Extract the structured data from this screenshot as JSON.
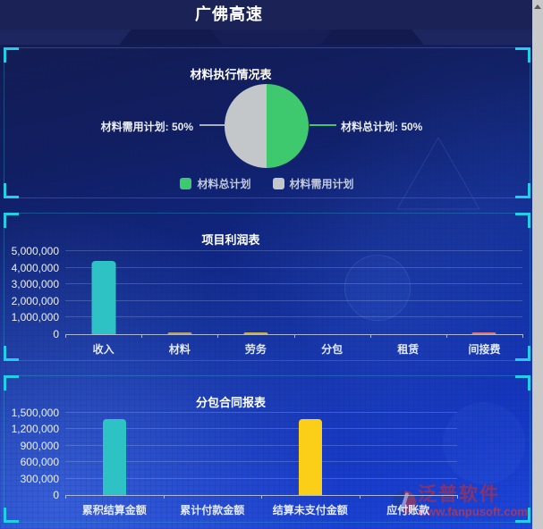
{
  "header": {
    "title": "广佛高速"
  },
  "icons": {
    "scroll_up": "triangle-up",
    "fanpu_logo": "red-blue-split-circle"
  },
  "colors": {
    "accent_cyan": "#1fd0e8",
    "teal_bar": "#2fc2c4",
    "yellow_bar": "#fbcf17",
    "green_slice": "#3fc96f",
    "grey_slice": "#c4c7ca"
  },
  "watermark": {
    "brand": "泛普软件",
    "url": "www.fanpusoft.com"
  },
  "chart_data": [
    {
      "type": "pie",
      "title": "材料执行情况表",
      "slices": [
        {
          "label": "材料总计划",
          "value": 50,
          "callout": "材料总计划: 50%",
          "color": "#3fc96f"
        },
        {
          "label": "材料需用计划",
          "value": 50,
          "callout": "材料需用计划: 50%",
          "color": "#c4c7ca"
        }
      ],
      "legend_position": "bottom"
    },
    {
      "type": "bar",
      "title": "项目利润表",
      "categories": [
        "收入",
        "材料",
        "劳务",
        "分包",
        "租赁",
        "间接费"
      ],
      "values": [
        4400000,
        80000,
        120000,
        0,
        0,
        40000
      ],
      "bar_colors": [
        "#2fc2c4",
        "#b3a06b",
        "#c7b23f",
        "#2fc2c4",
        "#2fc2c4",
        "#e2737d"
      ],
      "ylim": [
        0,
        5000000
      ],
      "ytick_step": 1000000,
      "ytick_labels": [
        "0",
        "1,000,000",
        "2,000,000",
        "3,000,000",
        "4,000,000",
        "5,000,000"
      ],
      "grid": true,
      "legend_position": "none"
    },
    {
      "type": "bar",
      "title": "分包合同报表",
      "categories": [
        "累积结算金额",
        "累计付款金额",
        "结算未支付金额",
        "应付账款"
      ],
      "values": [
        1380000,
        0,
        1380000,
        0
      ],
      "bar_colors": [
        "#2fc2c4",
        "#2fc2c4",
        "#fbcf17",
        "#2fc2c4"
      ],
      "ylim": [
        0,
        1500000
      ],
      "ytick_step": 300000,
      "ytick_labels": [
        "0",
        "300,000",
        "600,000",
        "900,000",
        "1,200,000",
        "1,500,000"
      ],
      "grid": true,
      "legend_position": "none"
    }
  ]
}
